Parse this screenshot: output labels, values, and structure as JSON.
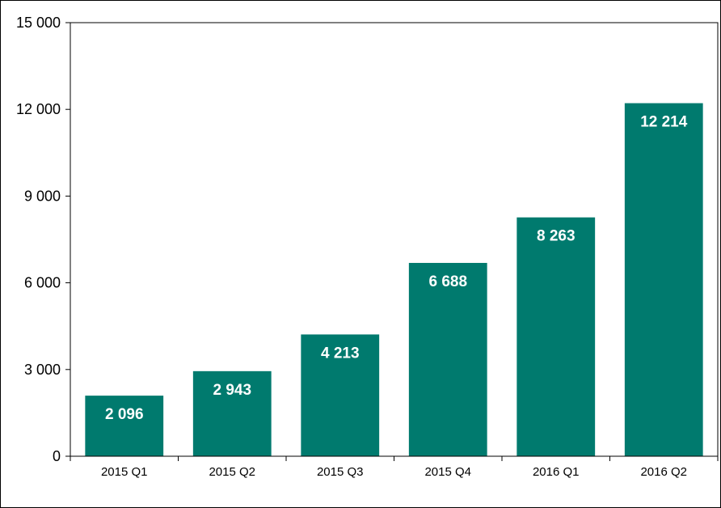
{
  "chart_data": {
    "type": "bar",
    "title": "",
    "xlabel": "",
    "ylabel": "",
    "categories": [
      "2015 Q1",
      "2015 Q2",
      "2015 Q3",
      "2015 Q4",
      "2016 Q1",
      "2016 Q2"
    ],
    "values": [
      2096,
      2943,
      4213,
      6688,
      8263,
      12214
    ],
    "value_labels": [
      "2 096",
      "2 943",
      "4 213",
      "6 688",
      "8 263",
      "12 214"
    ],
    "ylim": [
      0,
      15000
    ],
    "yticks": [
      0,
      3000,
      6000,
      9000,
      12000,
      15000
    ],
    "ytick_labels": [
      "0",
      "3 000",
      "6 000",
      "9 000",
      "12 000",
      "15 000"
    ],
    "grid": false,
    "legend": "none",
    "colors": {
      "bar": "#007A6E",
      "axis": "#000000",
      "data_label": "#FFFFFF"
    }
  }
}
